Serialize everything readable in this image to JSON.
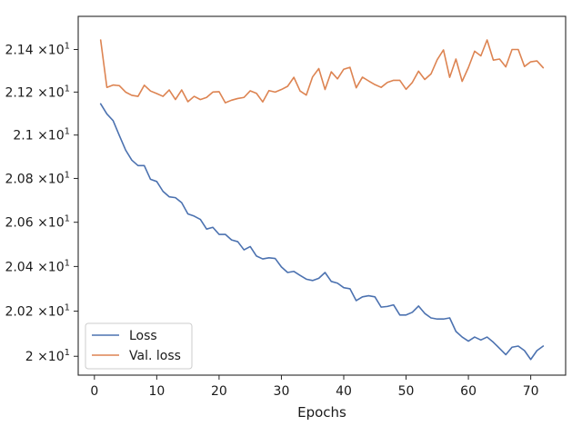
{
  "chart_data": {
    "type": "line",
    "title": "",
    "xlabel": "Epochs",
    "ylabel": "",
    "xlim": [
      -2.6,
      75.6
    ],
    "ylim": [
      19.917,
      21.557
    ],
    "y_scale": "log",
    "x_ticks": [
      0,
      10,
      20,
      30,
      40,
      50,
      60,
      70
    ],
    "x_tick_labels": [
      "0",
      "10",
      "20",
      "30",
      "40",
      "50",
      "60",
      "70"
    ],
    "y_ticks": [
      20.0,
      20.2,
      20.4,
      20.6,
      20.8,
      21.0,
      21.2,
      21.4
    ],
    "y_tick_labels": [
      {
        "mant": "2",
        "exp": "1"
      },
      {
        "mant": "2.02",
        "exp": "1"
      },
      {
        "mant": "2.04",
        "exp": "1"
      },
      {
        "mant": "2.06",
        "exp": "1"
      },
      {
        "mant": "2.08",
        "exp": "1"
      },
      {
        "mant": "2.1",
        "exp": "1"
      },
      {
        "mant": "2.12",
        "exp": "1"
      },
      {
        "mant": "2.14",
        "exp": "1"
      }
    ],
    "y_tick_times": "×10",
    "grid": false,
    "legend_position": "lower-left",
    "x": [
      1,
      2,
      3,
      4,
      5,
      6,
      7,
      8,
      9,
      10,
      11,
      12,
      13,
      14,
      15,
      16,
      17,
      18,
      19,
      20,
      21,
      22,
      23,
      24,
      25,
      26,
      27,
      28,
      29,
      30,
      31,
      32,
      33,
      34,
      35,
      36,
      37,
      38,
      39,
      40,
      41,
      42,
      43,
      44,
      45,
      46,
      47,
      48,
      49,
      50,
      51,
      52,
      53,
      54,
      55,
      56,
      57,
      58,
      59,
      60,
      61,
      62,
      63,
      64,
      65,
      66,
      67,
      68,
      69,
      70,
      71,
      72
    ],
    "series": [
      {
        "name": "Loss",
        "color": "#4c72b0",
        "values": [
          21.145,
          21.098,
          21.067,
          20.998,
          20.931,
          20.884,
          20.859,
          20.859,
          20.796,
          20.786,
          20.741,
          20.716,
          20.712,
          20.689,
          20.638,
          20.628,
          20.613,
          20.569,
          20.577,
          20.545,
          20.545,
          20.52,
          20.512,
          20.475,
          20.49,
          20.447,
          20.434,
          20.439,
          20.436,
          20.398,
          20.373,
          20.378,
          20.36,
          20.343,
          20.337,
          20.347,
          20.373,
          20.333,
          20.325,
          20.305,
          20.3,
          20.247,
          20.264,
          20.269,
          20.264,
          20.218,
          20.221,
          20.228,
          20.183,
          20.183,
          20.195,
          20.223,
          20.19,
          20.17,
          20.165,
          20.165,
          20.17,
          20.11,
          20.085,
          20.067,
          20.085,
          20.072,
          20.085,
          20.062,
          20.035,
          20.007,
          20.04,
          20.045,
          20.025,
          19.986,
          20.025,
          20.045
        ]
      },
      {
        "name": "Val. loss",
        "color": "#dd8452",
        "values": [
          21.445,
          21.222,
          21.233,
          21.23,
          21.2,
          21.185,
          21.18,
          21.232,
          21.205,
          21.193,
          21.18,
          21.21,
          21.165,
          21.21,
          21.155,
          21.18,
          21.165,
          21.175,
          21.2,
          21.202,
          21.15,
          21.162,
          21.17,
          21.175,
          21.206,
          21.194,
          21.154,
          21.207,
          21.2,
          21.212,
          21.227,
          21.269,
          21.205,
          21.186,
          21.271,
          21.31,
          21.212,
          21.295,
          21.262,
          21.307,
          21.316,
          21.22,
          21.27,
          21.252,
          21.235,
          21.222,
          21.245,
          21.255,
          21.255,
          21.213,
          21.245,
          21.298,
          21.259,
          21.285,
          21.352,
          21.398,
          21.269,
          21.355,
          21.25,
          21.315,
          21.392,
          21.37,
          21.445,
          21.35,
          21.355,
          21.318,
          21.4,
          21.4,
          21.32,
          21.342,
          21.346,
          21.314
        ]
      }
    ]
  }
}
